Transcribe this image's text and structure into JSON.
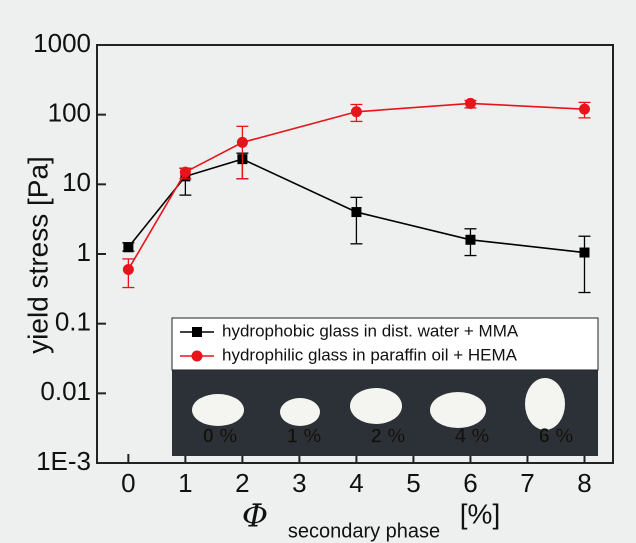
{
  "chart_data": {
    "type": "line",
    "y_label": "yield stress [Pa]",
    "x_label": {
      "symbol": "Φ",
      "subscript": "secondary phase",
      "unit": "[%]"
    },
    "xlim": [
      -0.55,
      8.5
    ],
    "xticks": [
      0,
      1,
      2,
      3,
      4,
      5,
      6,
      7,
      8
    ],
    "ylim": [
      0.001,
      1000
    ],
    "log_y": true,
    "yticks": [
      {
        "value": 0.001,
        "label": "1E-3"
      },
      0.01,
      0.1,
      1,
      10,
      100,
      1000
    ],
    "legend_position": "lower-right",
    "series": [
      {
        "name": "hydrophobic glass in dist. water + MMA",
        "color": "#000000",
        "marker": "square",
        "x": [
          0,
          1,
          2,
          4,
          6,
          8
        ],
        "values": [
          1.25,
          13,
          23,
          4,
          1.6,
          1.05
        ],
        "error_lower": [
          1.1,
          7,
          12,
          1.4,
          0.95,
          0.28
        ],
        "error_upper": [
          1.45,
          17,
          28,
          6.5,
          2.3,
          1.8
        ]
      },
      {
        "name": "hydrophilic glass in paraffin oil + HEMA",
        "color": "#e8141b",
        "marker": "circle",
        "x": [
          0,
          1,
          2,
          4,
          6,
          8
        ],
        "values": [
          0.6,
          15,
          40,
          110,
          145,
          120
        ],
        "error_lower": [
          0.33,
          12,
          12,
          80,
          125,
          90
        ],
        "error_upper": [
          0.85,
          17,
          68,
          140,
          160,
          150
        ]
      }
    ],
    "inset_labels": [
      "0 %",
      "1 %",
      "2 %",
      "4 %",
      "6 %"
    ]
  }
}
